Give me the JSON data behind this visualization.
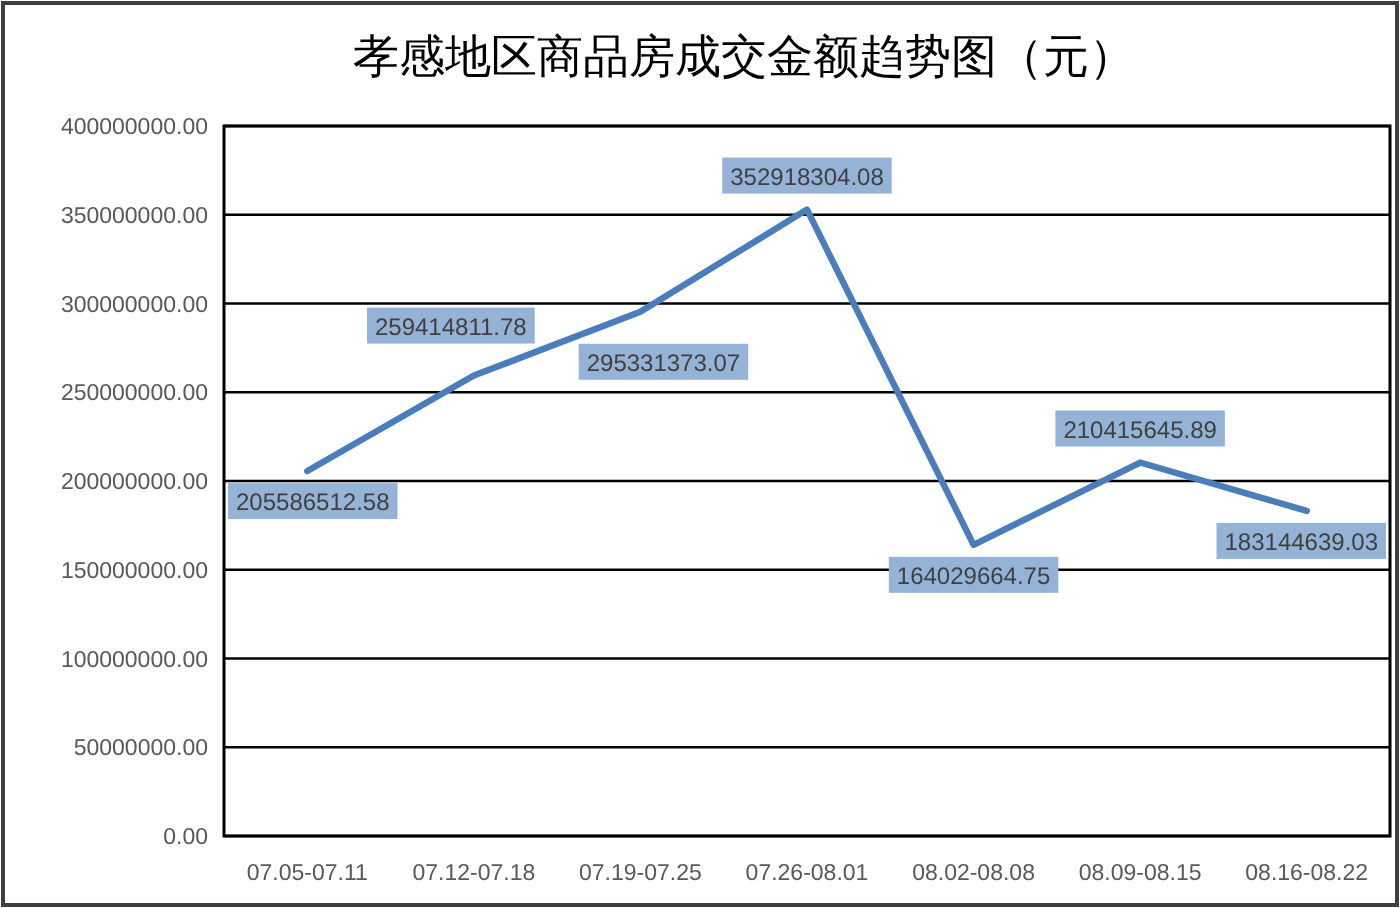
{
  "chart_data": {
    "type": "line",
    "title": "孝感地区商品房成交金额趋势图（元）",
    "categories": [
      "07.05-07.11",
      "07.12-07.18",
      "07.19-07.25",
      "07.26-08.01",
      "08.02-08.08",
      "08.09-08.15",
      "08.16-08.22"
    ],
    "series": [
      {
        "color": "#4a7ebb",
        "values": [
          205586512.58,
          259414811.78,
          295331373.07,
          352918304.08,
          164029664.75,
          210415645.89,
          183144639.03
        ]
      }
    ],
    "ylim": [
      0,
      400000000
    ],
    "yticks": [
      {
        "value": 0,
        "label": "0.00"
      },
      {
        "value": 50000000,
        "label": "50000000.00"
      },
      {
        "value": 100000000,
        "label": "100000000.00"
      },
      {
        "value": 150000000,
        "label": "150000000.00"
      },
      {
        "value": 200000000,
        "label": "200000000.00"
      },
      {
        "value": 250000000,
        "label": "250000000.00"
      },
      {
        "value": 300000000,
        "label": "300000000.00"
      },
      {
        "value": 350000000,
        "label": "350000000.00"
      },
      {
        "value": 400000000,
        "label": "400000000.00"
      }
    ],
    "grid": "y",
    "data_labels": true
  }
}
